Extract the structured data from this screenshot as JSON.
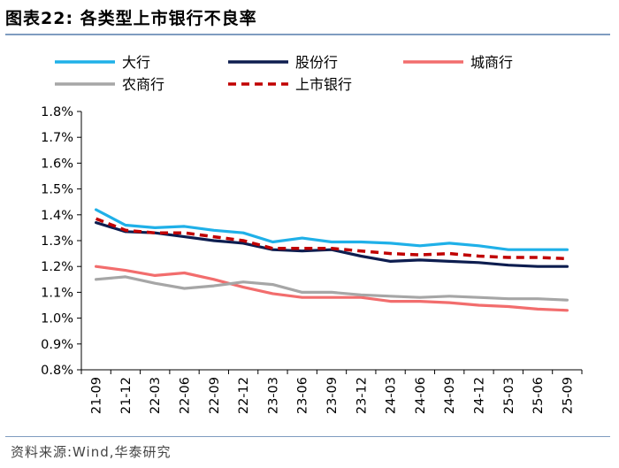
{
  "header": {
    "title": "图表22:  各类型上市银行不良率"
  },
  "footer": {
    "source": "资料来源:Wind,华泰研究"
  },
  "chart_data": {
    "type": "line",
    "title": "各类型上市银行不良率",
    "xlabel": "",
    "ylabel": "",
    "ylim": [
      0.8,
      1.8
    ],
    "yticks": [
      "0.8%",
      "0.9%",
      "1.0%",
      "1.1%",
      "1.2%",
      "1.3%",
      "1.4%",
      "1.5%",
      "1.6%",
      "1.7%",
      "1.8%"
    ],
    "grid": false,
    "legend_position": "top",
    "categories": [
      "21-09",
      "21-12",
      "22-03",
      "22-06",
      "22-09",
      "22-12",
      "23-03",
      "23-06",
      "23-09",
      "23-12",
      "24-03",
      "24-06",
      "24-09",
      "24-12",
      "25-03",
      "25-06",
      "25-09"
    ],
    "series": [
      {
        "name": "大行",
        "color": "#1fb0e8",
        "dash": "solid",
        "values": [
          1.42,
          1.36,
          1.35,
          1.355,
          1.34,
          1.33,
          1.295,
          1.31,
          1.295,
          1.295,
          1.29,
          1.28,
          1.29,
          1.28,
          1.265,
          1.265,
          1.265
        ]
      },
      {
        "name": "股份行",
        "color": "#0d1d4f",
        "dash": "solid",
        "values": [
          1.37,
          1.335,
          1.33,
          1.315,
          1.3,
          1.29,
          1.265,
          1.26,
          1.265,
          1.24,
          1.22,
          1.225,
          1.22,
          1.215,
          1.205,
          1.2,
          1.2
        ]
      },
      {
        "name": "城商行",
        "color": "#f26d6d",
        "dash": "solid",
        "values": [
          1.2,
          1.185,
          1.165,
          1.175,
          1.15,
          1.12,
          1.095,
          1.08,
          1.08,
          1.08,
          1.065,
          1.065,
          1.06,
          1.05,
          1.045,
          1.035,
          1.03
        ]
      },
      {
        "name": "农商行",
        "color": "#a6a6a6",
        "dash": "solid",
        "values": [
          1.15,
          1.16,
          1.135,
          1.115,
          1.125,
          1.14,
          1.13,
          1.1,
          1.1,
          1.09,
          1.085,
          1.08,
          1.085,
          1.08,
          1.075,
          1.075,
          1.07
        ]
      },
      {
        "name": "上市银行",
        "color": "#c00000",
        "dash": "dashed",
        "values": [
          1.385,
          1.34,
          1.33,
          1.33,
          1.315,
          1.3,
          1.27,
          1.27,
          1.27,
          1.26,
          1.25,
          1.245,
          1.25,
          1.24,
          1.235,
          1.235,
          1.23
        ]
      }
    ]
  }
}
